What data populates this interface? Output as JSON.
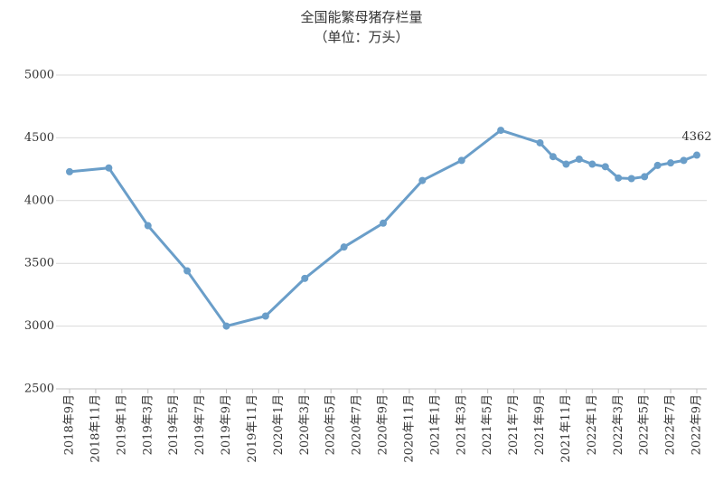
{
  "chart_data": {
    "type": "line",
    "title": "全国能繁母猪存栏量",
    "subtitle": "（单位：万头）",
    "x": [
      "2018-09",
      "2018-12",
      "2019-03",
      "2019-06",
      "2019-09",
      "2019-12",
      "2020-03",
      "2020-06",
      "2020-09",
      "2020-12",
      "2021-03",
      "2021-06",
      "2021-09",
      "2021-10",
      "2021-11",
      "2021-12",
      "2022-01",
      "2022-02",
      "2022-03",
      "2022-04",
      "2022-05",
      "2022-06",
      "2022-07",
      "2022-08",
      "2022-09"
    ],
    "series": [
      {
        "name": "全国能繁母猪存栏量",
        "color": "#6a9ec9",
        "values": [
          4230,
          4260,
          3800,
          3440,
          3000,
          3080,
          3380,
          3630,
          3820,
          4160,
          4320,
          4560,
          4460,
          4350,
          4290,
          4330,
          4290,
          4270,
          4180,
          4175,
          4190,
          4280,
          4300,
          4320,
          4362
        ]
      }
    ],
    "ylim": [
      2500,
      5000
    ],
    "yticks": [
      2500,
      3000,
      3500,
      4000,
      4500,
      5000
    ],
    "grid": true,
    "xticks": [
      {
        "value": "2018-09",
        "label": "2018年9月"
      },
      {
        "value": "2018-11",
        "label": "2018年11月"
      },
      {
        "value": "2019-01",
        "label": "2019年1月"
      },
      {
        "value": "2019-03",
        "label": "2019年3月"
      },
      {
        "value": "2019-05",
        "label": "2019年5月"
      },
      {
        "value": "2019-07",
        "label": "2019年7月"
      },
      {
        "value": "2019-09",
        "label": "2019年9月"
      },
      {
        "value": "2019-11",
        "label": "2019年11月"
      },
      {
        "value": "2020-01",
        "label": "2020年1月"
      },
      {
        "value": "2020-03",
        "label": "2020年3月"
      },
      {
        "value": "2020-05",
        "label": "2020年5月"
      },
      {
        "value": "2020-07",
        "label": "2020年7月"
      },
      {
        "value": "2020-09",
        "label": "2020年9月"
      },
      {
        "value": "2020-11",
        "label": "2020年11月"
      },
      {
        "value": "2021-01",
        "label": "2021年1月"
      },
      {
        "value": "2021-03",
        "label": "2021年3月"
      },
      {
        "value": "2021-05",
        "label": "2021年5月"
      },
      {
        "value": "2021-07",
        "label": "2021年7月"
      },
      {
        "value": "2021-09",
        "label": "2021年9月"
      },
      {
        "value": "2021-11",
        "label": "2021年11月"
      },
      {
        "value": "2022-01",
        "label": "2022年1月"
      },
      {
        "value": "2022-03",
        "label": "2022年3月"
      },
      {
        "value": "2022-05",
        "label": "2022年5月"
      },
      {
        "value": "2022-07",
        "label": "2022年7月"
      },
      {
        "value": "2022-09",
        "label": "2022年9月"
      }
    ],
    "xlim": [
      "2018-09",
      "2022-09"
    ]
  }
}
